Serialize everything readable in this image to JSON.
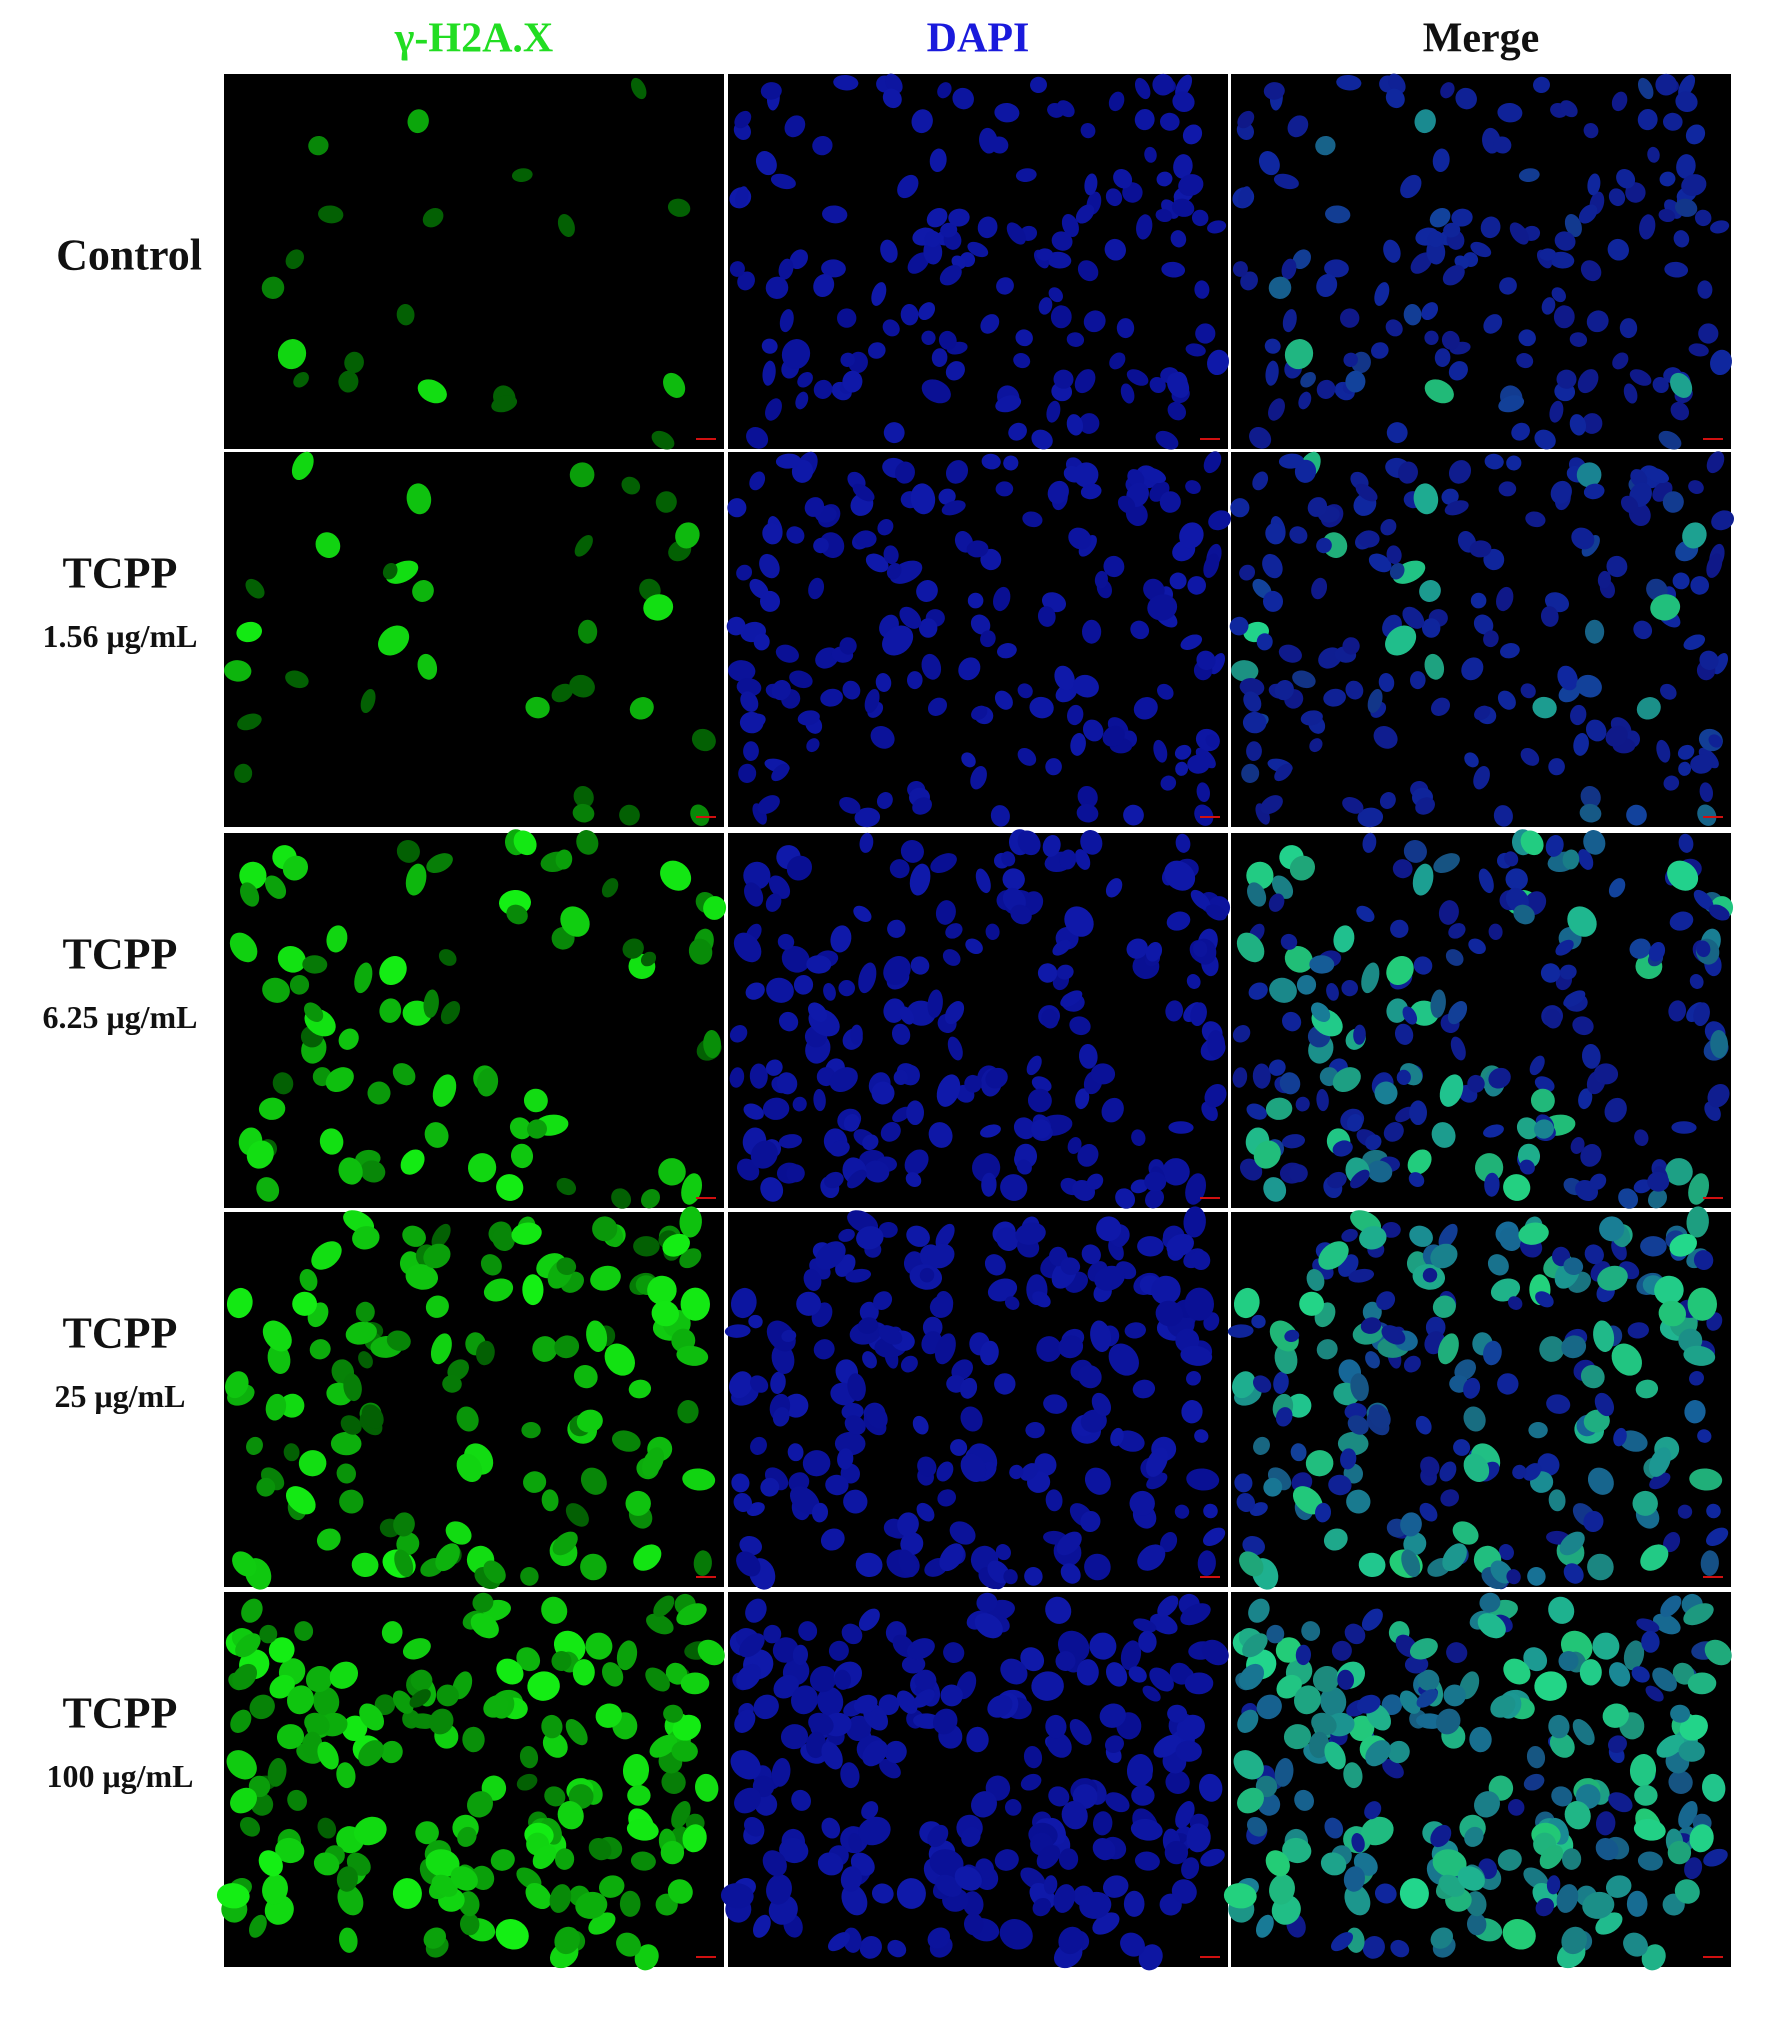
{
  "columns": [
    "γ-H2A.X",
    "DAPI",
    "Merge"
  ],
  "rows": [
    {
      "label": "Control"
    },
    {
      "label": "TCPP",
      "dose": "1.56 μg/mL"
    },
    {
      "label": "TCPP",
      "dose": "6.25 μg/mL"
    },
    {
      "label": "TCPP",
      "dose": "25 μg/mL"
    },
    {
      "label": "TCPP",
      "dose": "100 μg/mL"
    }
  ]
}
